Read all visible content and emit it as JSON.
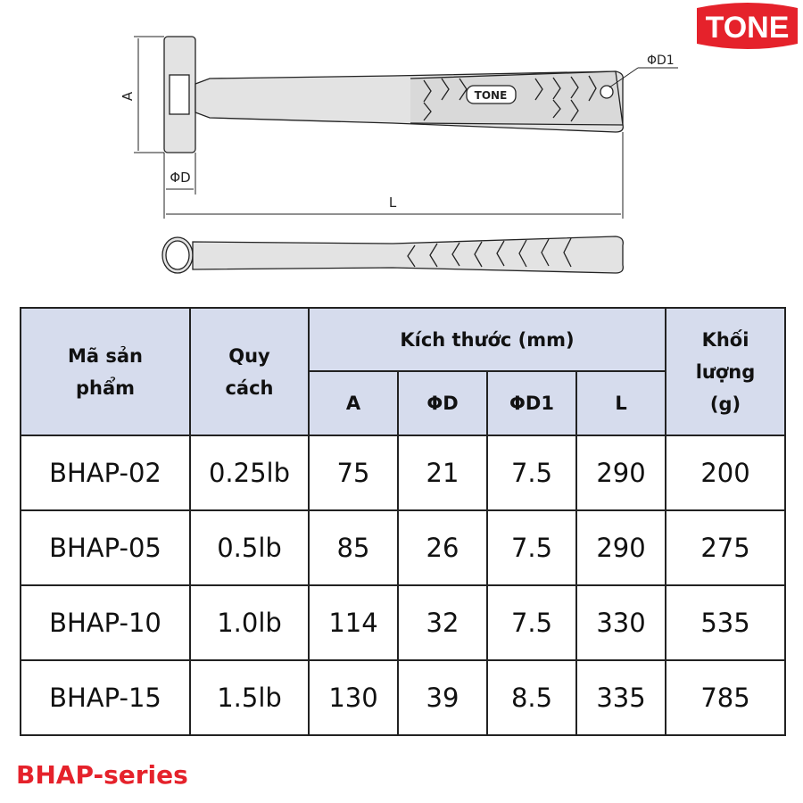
{
  "logo": {
    "text": "TONE",
    "color": "#e5222b"
  },
  "drawing": {
    "labels": {
      "a": "A",
      "d": "ΦD",
      "d1": "ΦD1",
      "l": "L"
    },
    "handle_logo": "TONE"
  },
  "table": {
    "headers": {
      "code": "Mã sản phẩm",
      "spec": "Quy cách",
      "size_group": "Kích thước (mm)",
      "a": "A",
      "d": "ΦD",
      "d1": "ΦD1",
      "l": "L",
      "weight": "Khối lượng (g)"
    },
    "rows": [
      {
        "code": "BHAP-02",
        "spec": "0.25lb",
        "a": "75",
        "d": "21",
        "d1": "7.5",
        "l": "290",
        "weight": "200"
      },
      {
        "code": "BHAP-05",
        "spec": "0.5lb",
        "a": "85",
        "d": "26",
        "d1": "7.5",
        "l": "290",
        "weight": "275"
      },
      {
        "code": "BHAP-10",
        "spec": "1.0lb",
        "a": "114",
        "d": "32",
        "d1": "7.5",
        "l": "330",
        "weight": "535"
      },
      {
        "code": "BHAP-15",
        "spec": "1.5lb",
        "a": "130",
        "d": "39",
        "d1": "8.5",
        "l": "335",
        "weight": "785"
      }
    ],
    "header_bg": "#d6dced"
  },
  "footer": {
    "series": "BHAP-series",
    "color": "#e5222b"
  }
}
